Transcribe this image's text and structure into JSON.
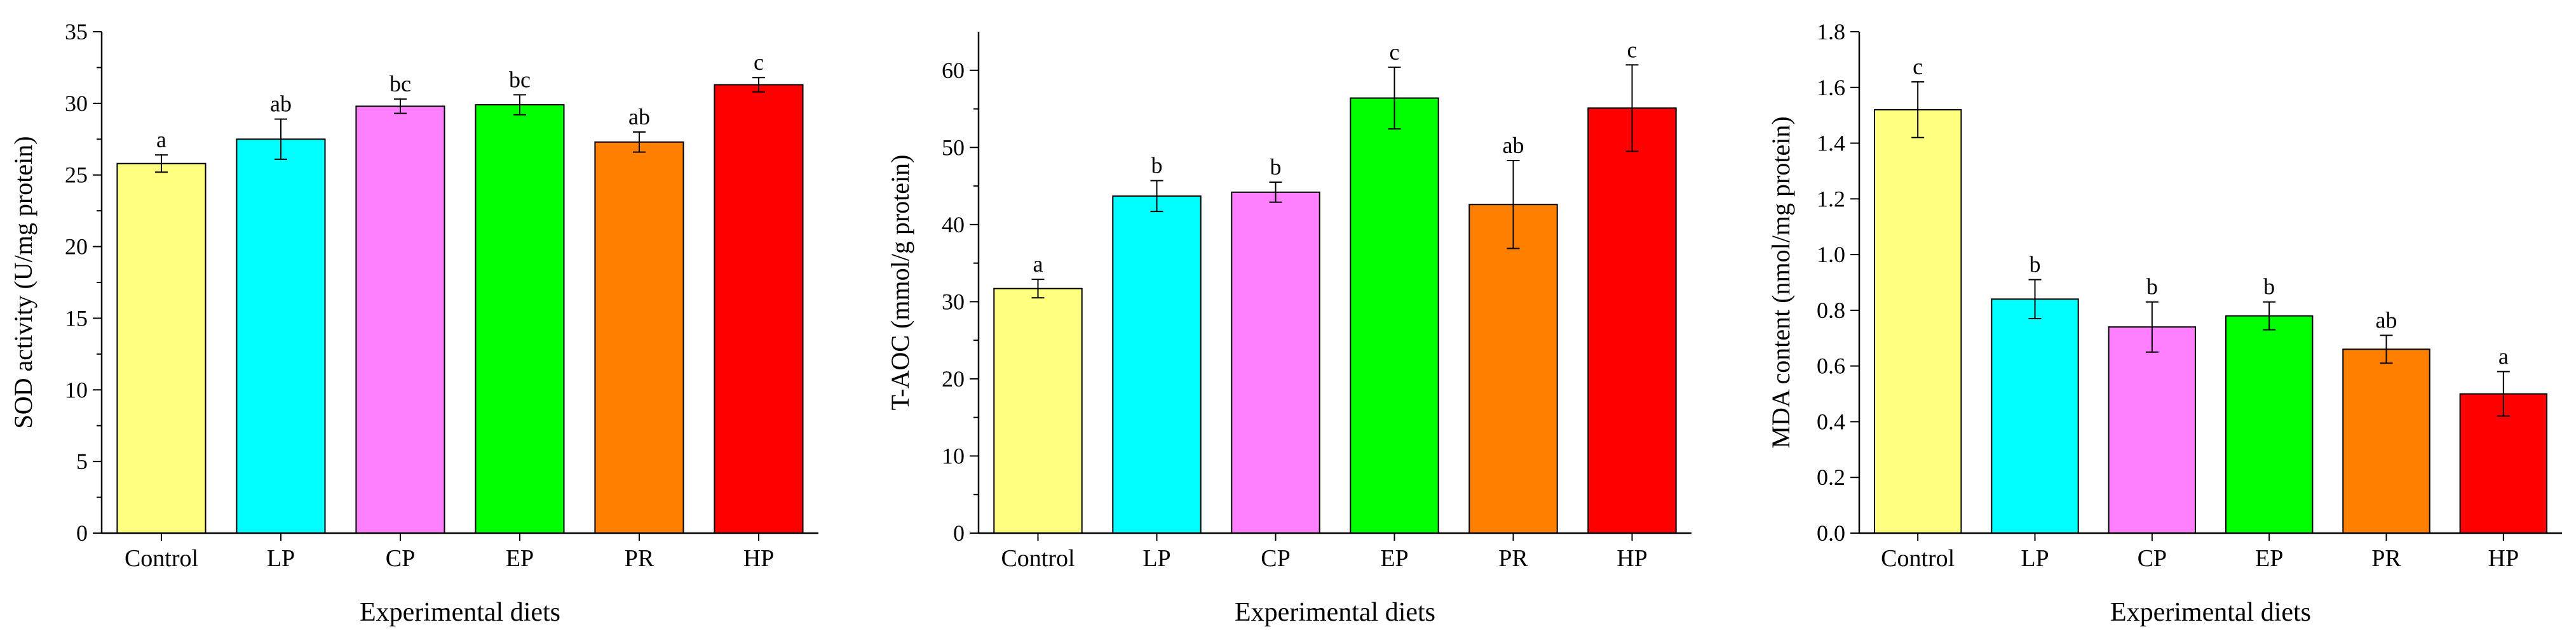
{
  "chart_data": [
    {
      "type": "bar",
      "categories": [
        "Control",
        "LP",
        "CP",
        "EP",
        "PR",
        "HP"
      ],
      "values": [
        25.8,
        27.5,
        29.8,
        29.9,
        27.3,
        31.3
      ],
      "errors": [
        0.6,
        1.4,
        0.5,
        0.7,
        0.7,
        0.5
      ],
      "letters": [
        "a",
        "ab",
        "bc",
        "bc",
        "ab",
        "c"
      ],
      "ylabel": "SOD activity (U/mg protein)",
      "xlabel": "Experimental diets",
      "ylim": [
        0,
        35
      ],
      "yticks": [
        0,
        5,
        10,
        15,
        20,
        25,
        30,
        35
      ],
      "ytick_labels": [
        "0",
        "5",
        "10",
        "15",
        "20",
        "25",
        "30",
        "35"
      ],
      "minor_ticks": true
    },
    {
      "type": "bar",
      "categories": [
        "Control",
        "LP",
        "CP",
        "EP",
        "PR",
        "HP"
      ],
      "values": [
        31.7,
        43.7,
        44.2,
        56.4,
        42.6,
        55.1
      ],
      "errors": [
        1.2,
        2.0,
        1.3,
        4.0,
        5.7,
        5.6
      ],
      "letters": [
        "a",
        "b",
        "b",
        "c",
        "ab",
        "c"
      ],
      "ylabel": "T-AOC (mmol/g protein)",
      "xlabel": "Experimental diets",
      "ylim": [
        0,
        65
      ],
      "yticks": [
        0,
        10,
        20,
        30,
        40,
        50,
        60
      ],
      "ytick_labels": [
        "0",
        "10",
        "20",
        "30",
        "40",
        "50",
        "60"
      ],
      "minor_ticks": true
    },
    {
      "type": "bar",
      "categories": [
        "Control",
        "LP",
        "CP",
        "EP",
        "PR",
        "HP"
      ],
      "values": [
        1.52,
        0.84,
        0.74,
        0.78,
        0.66,
        0.5
      ],
      "errors": [
        0.1,
        0.07,
        0.09,
        0.05,
        0.05,
        0.08
      ],
      "letters": [
        "c",
        "b",
        "b",
        "b",
        "ab",
        "a"
      ],
      "ylabel": "MDA content (nmol/mg protein)",
      "xlabel": "Experimental diets",
      "ylim": [
        0,
        1.8
      ],
      "yticks": [
        0,
        0.2,
        0.4,
        0.6,
        0.8,
        1.0,
        1.2,
        1.4,
        1.6,
        1.8
      ],
      "ytick_labels": [
        "0.0",
        "0.2",
        "0.4",
        "0.6",
        "0.8",
        "1.0",
        "1.2",
        "1.4",
        "1.6",
        "1.8"
      ],
      "minor_ticks": false
    }
  ],
  "colors": {
    "bars": [
      "#ffff80",
      "#00ffff",
      "#ff80ff",
      "#00ff00",
      "#ff8000",
      "#ff0000"
    ],
    "axis": "#000000",
    "bar_stroke": "#000000"
  }
}
